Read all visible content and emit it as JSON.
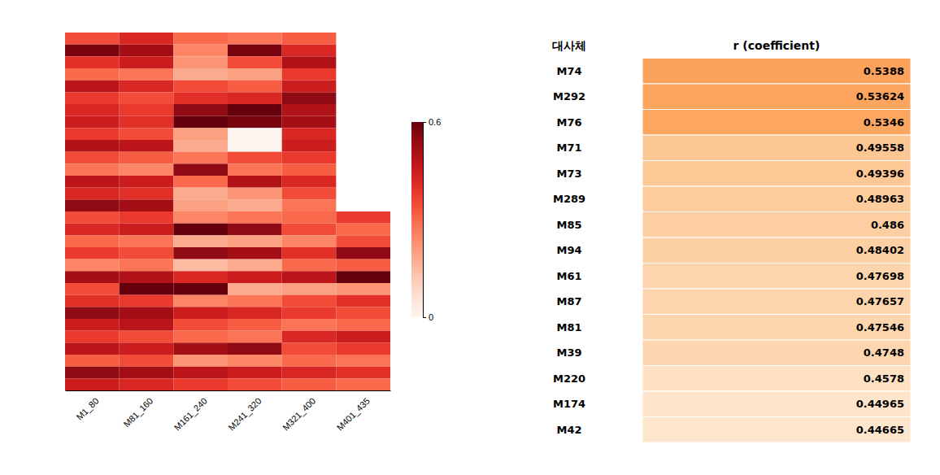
{
  "chart_data": [
    {
      "type": "heatmap",
      "categories": [
        "M1_80",
        "M81_160",
        "M161_240",
        "M241_320",
        "M321_400",
        "M401_435"
      ],
      "cells": [
        [
          0.35,
          0.42,
          0.3,
          0.28,
          0.32,
          null
        ],
        [
          0.58,
          0.52,
          0.25,
          0.58,
          0.42,
          null
        ],
        [
          0.4,
          0.45,
          0.22,
          0.35,
          0.5,
          null
        ],
        [
          0.3,
          0.28,
          0.18,
          0.2,
          0.38,
          null
        ],
        [
          0.48,
          0.42,
          0.35,
          0.32,
          0.45,
          null
        ],
        [
          0.38,
          0.35,
          0.4,
          0.42,
          0.55,
          null
        ],
        [
          0.42,
          0.38,
          0.55,
          0.6,
          0.5,
          null
        ],
        [
          0.45,
          0.4,
          0.6,
          0.58,
          0.52,
          null
        ],
        [
          0.38,
          0.35,
          0.2,
          0.0,
          0.42,
          null
        ],
        [
          0.5,
          0.48,
          0.18,
          0.0,
          0.45,
          null
        ],
        [
          0.35,
          0.32,
          0.28,
          0.35,
          0.38,
          null
        ],
        [
          0.28,
          0.25,
          0.55,
          0.28,
          0.32,
          null
        ],
        [
          0.48,
          0.45,
          0.3,
          0.5,
          0.42,
          null
        ],
        [
          0.42,
          0.4,
          0.18,
          0.22,
          0.35,
          null
        ],
        [
          0.55,
          0.52,
          0.2,
          0.18,
          0.28,
          null
        ],
        [
          0.35,
          0.38,
          0.25,
          0.28,
          0.3,
          0.38
        ],
        [
          0.42,
          0.45,
          0.6,
          0.55,
          0.35,
          0.3
        ],
        [
          0.3,
          0.28,
          0.18,
          0.2,
          0.25,
          0.35
        ],
        [
          0.38,
          0.35,
          0.55,
          0.52,
          0.4,
          0.55
        ],
        [
          0.25,
          0.28,
          0.15,
          0.18,
          0.3,
          0.32
        ],
        [
          0.52,
          0.5,
          0.42,
          0.45,
          0.48,
          0.6
        ],
        [
          0.35,
          0.6,
          0.6,
          0.18,
          0.2,
          0.22
        ],
        [
          0.4,
          0.38,
          0.25,
          0.28,
          0.35,
          0.4
        ],
        [
          0.55,
          0.52,
          0.45,
          0.42,
          0.38,
          0.35
        ],
        [
          0.45,
          0.48,
          0.35,
          0.32,
          0.28,
          0.3
        ],
        [
          0.38,
          0.35,
          0.3,
          0.28,
          0.42,
          0.45
        ],
        [
          0.48,
          0.45,
          0.52,
          0.55,
          0.35,
          0.38
        ],
        [
          0.32,
          0.35,
          0.22,
          0.25,
          0.3,
          0.28
        ],
        [
          0.55,
          0.52,
          0.48,
          0.45,
          0.42,
          0.4
        ],
        [
          0.45,
          0.42,
          0.38,
          0.35,
          0.32,
          0.3
        ]
      ],
      "colorbar_range": [
        0.0,
        0.6
      ],
      "colorbar_ticks": [
        0.6,
        0
      ],
      "tick_labels": "x"
    },
    {
      "type": "table",
      "column_headers": [
        "대사체",
        "r (coefficient)"
      ],
      "categories": [
        "M74",
        "M292",
        "M76",
        "M71",
        "M73",
        "M289",
        "M85",
        "M94",
        "M61",
        "M87",
        "M81",
        "M39",
        "M220",
        "M174",
        "M42"
      ],
      "values": [
        0.5388,
        0.53624,
        0.5346,
        0.49558,
        0.49396,
        0.48963,
        0.486,
        0.48402,
        0.47698,
        0.47657,
        0.47546,
        0.4748,
        0.4578,
        0.44965,
        0.44665
      ],
      "data_labels": true
    }
  ]
}
